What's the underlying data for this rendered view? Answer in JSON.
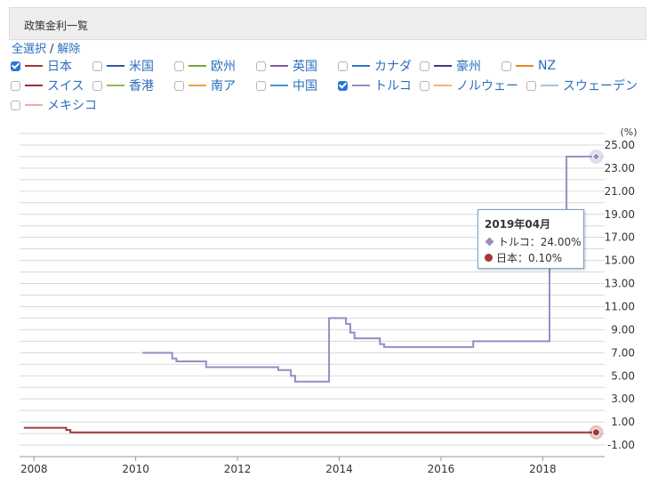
{
  "header": {
    "title": "政策金利一覧"
  },
  "selection": {
    "select_all": "全選択",
    "separator": "/",
    "deselect": "解除"
  },
  "legend_items": [
    {
      "label": "日本",
      "color": "#a4373a",
      "checked": true
    },
    {
      "label": "米国",
      "color": "#2e5a9c",
      "checked": false
    },
    {
      "label": "欧州",
      "color": "#7aa63c",
      "checked": false
    },
    {
      "label": "英国",
      "color": "#7b5aa6",
      "checked": false
    },
    {
      "label": "カナダ",
      "color": "#2c79c0",
      "checked": false
    },
    {
      "label": "豪州",
      "color": "#3b3f88",
      "checked": false
    },
    {
      "label": "NZ",
      "color": "#e8862a",
      "checked": false
    },
    {
      "label": "スイス",
      "color": "#9c3232",
      "checked": false
    },
    {
      "label": "香港",
      "color": "#8cc04c",
      "checked": false
    },
    {
      "label": "南ア",
      "color": "#f2a040",
      "checked": false
    },
    {
      "label": "中国",
      "color": "#3a9ad6",
      "checked": false
    },
    {
      "label": "トルコ",
      "color": "#9b8ac3",
      "checked": true
    },
    {
      "label": "ノルウェー",
      "color": "#f4b07a",
      "checked": false
    },
    {
      "label": "スウェーデン",
      "color": "#a9c3e0",
      "checked": false
    },
    {
      "label": "メキシコ",
      "color": "#f0a9a4",
      "checked": false
    }
  ],
  "tooltip": {
    "title": "2019年04月",
    "rows": [
      {
        "label": "トルコ：24.00%"
      },
      {
        "label": "日本：0.10%"
      }
    ]
  },
  "chart_data": {
    "type": "line",
    "ylabel": "(%)",
    "ylim": [
      -2,
      26
    ],
    "xlim": [
      "2007-12",
      "2019-06"
    ],
    "x_ticks": [
      "2008",
      "2010",
      "2012",
      "2014",
      "2016",
      "2018"
    ],
    "y_ticks": [
      "25.00",
      "23.00",
      "21.00",
      "19.00",
      "17.00",
      "15.00",
      "13.00",
      "11.00",
      "9.00",
      "7.00",
      "5.00",
      "3.00",
      "1.00",
      "-1.00"
    ],
    "grid": true,
    "series": [
      {
        "name": "日本",
        "color": "#a4373a",
        "points": [
          {
            "x": "2008-01",
            "y": 0.5
          },
          {
            "x": "2008-10",
            "y": 0.5
          },
          {
            "x": "2008-11",
            "y": 0.3
          },
          {
            "x": "2008-12",
            "y": 0.1
          },
          {
            "x": "2019-04",
            "y": 0.1
          }
        ]
      },
      {
        "name": "トルコ",
        "color": "#9b8ac3",
        "points": [
          {
            "x": "2010-05",
            "y": 7.0
          },
          {
            "x": "2010-12",
            "y": 6.5
          },
          {
            "x": "2011-01",
            "y": 6.25
          },
          {
            "x": "2011-08",
            "y": 5.75
          },
          {
            "x": "2013-01",
            "y": 5.5
          },
          {
            "x": "2013-04",
            "y": 5.0
          },
          {
            "x": "2013-05",
            "y": 4.5
          },
          {
            "x": "2014-01",
            "y": 10.0
          },
          {
            "x": "2014-05",
            "y": 9.5
          },
          {
            "x": "2014-06",
            "y": 8.75
          },
          {
            "x": "2014-07",
            "y": 8.25
          },
          {
            "x": "2015-01",
            "y": 7.75
          },
          {
            "x": "2015-02",
            "y": 7.5
          },
          {
            "x": "2016-11",
            "y": 8.0
          },
          {
            "x": "2018-05",
            "y": 16.5
          },
          {
            "x": "2018-06",
            "y": 17.75
          },
          {
            "x": "2018-09",
            "y": 24.0
          },
          {
            "x": "2019-04",
            "y": 24.0
          }
        ]
      }
    ]
  }
}
